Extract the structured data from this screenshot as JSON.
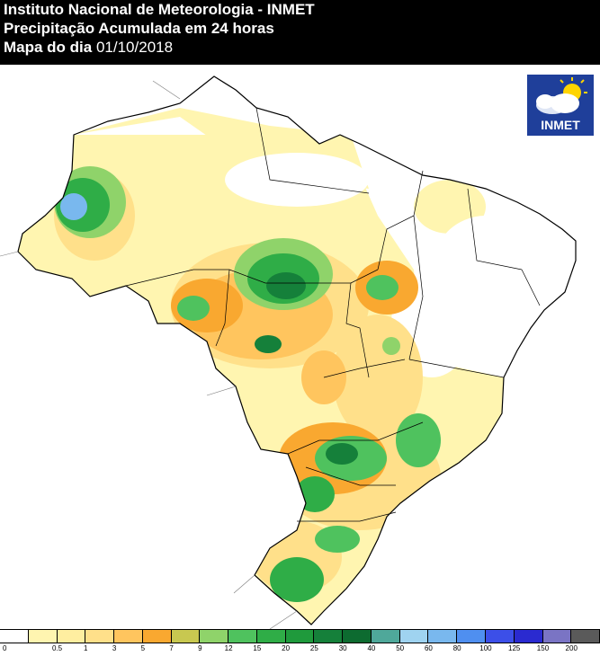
{
  "header": {
    "line1": "Instituto Nacional de Meteorologia - INMET",
    "line2": "Precipitação Acumulada em 24 horas",
    "line3_prefix": "Mapa do dia ",
    "line3_date": "01/10/2018"
  },
  "logo": {
    "text": "INMET",
    "icon": "cloud-sun-icon"
  },
  "legend": {
    "unit_hint": "mm",
    "labels": [
      "0",
      "0.5",
      "1",
      "3",
      "5",
      "7",
      "9",
      "12",
      "15",
      "20",
      "25",
      "30",
      "40",
      "50",
      "60",
      "80",
      "100",
      "125",
      "150",
      "200"
    ],
    "colors": [
      "#ffffff",
      "#fff5b0",
      "#ffeea0",
      "#ffe08a",
      "#ffc55e",
      "#f9a830",
      "#c8c850",
      "#8fd36a",
      "#4fc25e",
      "#2fad47",
      "#1f9a3c",
      "#15803a",
      "#0d6b30",
      "#4fa89a",
      "#9fd3f0",
      "#79b8ee",
      "#4f8ff0",
      "#3c4fe8",
      "#2a2ad0",
      "#7a74c4",
      "#5a5a5a"
    ]
  },
  "colors": {
    "header_bg": "#000000",
    "header_text": "#ffffff",
    "logo_bg": "#1f3f9a"
  }
}
